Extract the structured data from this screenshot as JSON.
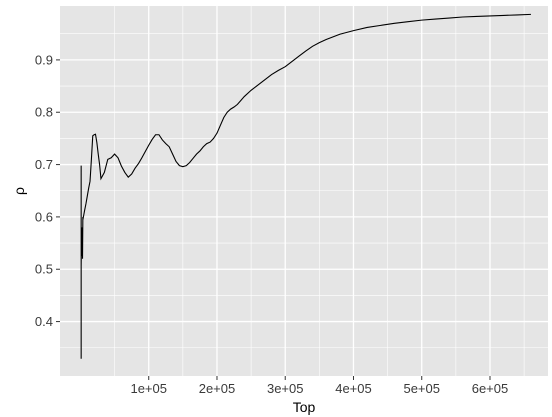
{
  "chart_data": {
    "type": "line",
    "title": "",
    "xlabel": "Top",
    "ylabel": "ρ",
    "xlim": [
      -30000,
      685000
    ],
    "ylim": [
      0.296,
      1.003
    ],
    "x_ticks": [
      100000,
      200000,
      300000,
      400000,
      500000,
      600000
    ],
    "x_tick_labels": [
      "1e+05",
      "2e+05",
      "3e+05",
      "4e+05",
      "5e+05",
      "6e+05"
    ],
    "x_minor": [
      50000,
      150000,
      250000,
      350000,
      450000,
      550000,
      650000
    ],
    "y_ticks": [
      0.4,
      0.5,
      0.6,
      0.7,
      0.8,
      0.9
    ],
    "y_tick_labels": [
      "0.4",
      "0.5",
      "0.6",
      "0.7",
      "0.8",
      "0.9"
    ],
    "y_minor": [
      0.35,
      0.45,
      0.55,
      0.65,
      0.75,
      0.85,
      0.95
    ],
    "grid": true,
    "panel_color": "#e5e5e5",
    "grid_color": "#ffffff",
    "line_color": "#000000",
    "series": [
      {
        "x": [
          1000,
          1000,
          1000,
          1500,
          2000,
          2500,
          3000,
          3500,
          4000,
          5000,
          6000,
          8000,
          10000,
          12000,
          14000,
          16000,
          18000,
          20000,
          22000,
          24000,
          26000,
          28000,
          30000,
          35000,
          40000,
          45000,
          50000,
          55000,
          60000,
          65000,
          70000,
          75000,
          80000,
          85000,
          90000,
          95000,
          100000,
          105000,
          110000,
          115000,
          120000,
          125000,
          130000,
          135000,
          140000,
          145000,
          150000,
          155000,
          160000,
          165000,
          170000,
          175000,
          180000,
          185000,
          190000,
          195000,
          200000,
          205000,
          210000,
          215000,
          220000,
          225000,
          230000,
          240000,
          250000,
          260000,
          270000,
          280000,
          290000,
          300000,
          310000,
          320000,
          330000,
          340000,
          350000,
          360000,
          380000,
          400000,
          420000,
          440000,
          460000,
          480000,
          500000,
          520000,
          540000,
          560000,
          580000,
          600000,
          620000,
          640000,
          660000
        ],
        "y": [
          0.329,
          0.698,
          0.505,
          0.57,
          0.525,
          0.58,
          0.52,
          0.6,
          0.598,
          0.605,
          0.612,
          0.625,
          0.64,
          0.655,
          0.668,
          0.71,
          0.755,
          0.757,
          0.758,
          0.742,
          0.72,
          0.7,
          0.673,
          0.685,
          0.71,
          0.713,
          0.72,
          0.713,
          0.697,
          0.685,
          0.676,
          0.682,
          0.693,
          0.702,
          0.713,
          0.725,
          0.737,
          0.748,
          0.757,
          0.757,
          0.747,
          0.74,
          0.734,
          0.72,
          0.706,
          0.698,
          0.696,
          0.698,
          0.704,
          0.712,
          0.72,
          0.726,
          0.734,
          0.74,
          0.743,
          0.75,
          0.76,
          0.775,
          0.79,
          0.8,
          0.806,
          0.81,
          0.815,
          0.83,
          0.842,
          0.852,
          0.862,
          0.872,
          0.88,
          0.887,
          0.897,
          0.907,
          0.917,
          0.926,
          0.933,
          0.939,
          0.949,
          0.956,
          0.962,
          0.966,
          0.97,
          0.973,
          0.976,
          0.978,
          0.98,
          0.982,
          0.983,
          0.984,
          0.985,
          0.986,
          0.987
        ]
      }
    ]
  }
}
